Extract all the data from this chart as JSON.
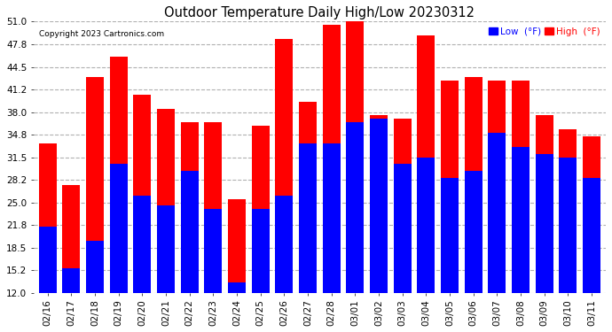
{
  "title": "Outdoor Temperature Daily High/Low 20230312",
  "copyright": "Copyright 2023 Cartronics.com",
  "categories": [
    "02/16",
    "02/17",
    "02/18",
    "02/19",
    "02/20",
    "02/21",
    "02/22",
    "02/23",
    "02/24",
    "02/25",
    "02/26",
    "02/27",
    "02/28",
    "03/01",
    "03/02",
    "03/03",
    "03/04",
    "03/05",
    "03/06",
    "03/07",
    "03/08",
    "03/09",
    "03/10",
    "03/11"
  ],
  "high_values": [
    33.5,
    27.5,
    43.0,
    46.0,
    40.5,
    38.5,
    36.5,
    36.5,
    25.5,
    36.0,
    48.5,
    39.5,
    50.5,
    51.5,
    37.5,
    37.0,
    49.0,
    42.5,
    43.0,
    42.5,
    42.5,
    37.5,
    35.5,
    34.5
  ],
  "low_values": [
    21.5,
    15.5,
    19.5,
    30.5,
    26.0,
    24.5,
    29.5,
    24.0,
    13.5,
    24.0,
    26.0,
    33.5,
    33.5,
    36.5,
    37.0,
    30.5,
    31.5,
    28.5,
    29.5,
    35.0,
    33.0,
    32.0,
    31.5,
    28.5
  ],
  "high_color": "#ff0000",
  "low_color": "#0000ff",
  "bg_color": "#ffffff",
  "plot_bg_color": "#ffffff",
  "grid_color": "#b0b0b0",
  "ymin": 12.0,
  "ymax": 51.0,
  "yticks": [
    12.0,
    15.2,
    18.5,
    21.8,
    25.0,
    28.2,
    31.5,
    34.8,
    38.0,
    41.2,
    44.5,
    47.8,
    51.0
  ],
  "legend_low_label": "Low  (°F)",
  "legend_high_label": "High  (°F)",
  "bar_width": 0.75
}
